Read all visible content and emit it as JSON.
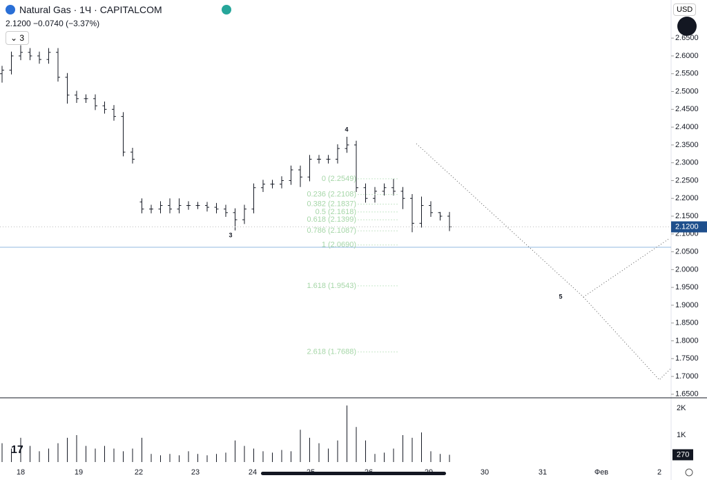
{
  "header": {
    "title": "Natural Gas · 1Ч · CAPITALCOM",
    "price": "2.1200",
    "change": "−0.0740 (−3.37%)",
    "intervals": "3",
    "currency": "USD",
    "current_price": "2.1200"
  },
  "chart_data": {
    "type": "ohlc",
    "color": "#131722",
    "open": [
      2.55,
      2.56,
      2.6,
      2.61,
      2.6,
      2.59,
      2.61,
      2.54,
      2.49,
      2.48,
      2.48,
      2.46,
      2.45,
      2.43,
      2.33,
      2.19,
      2.17,
      2.17,
      2.18,
      2.17,
      2.18,
      2.18,
      2.18,
      2.175,
      2.17,
      2.16,
      2.14,
      2.17,
      2.23,
      2.24,
      2.24,
      2.25,
      2.28,
      2.26,
      2.31,
      2.31,
      2.31,
      2.34,
      2.35,
      2.23,
      2.2,
      2.22,
      2.23,
      2.22,
      2.2,
      2.13,
      2.18,
      2.16,
      2.15
    ],
    "high": [
      2.572,
      2.612,
      2.63,
      2.622,
      2.612,
      2.622,
      2.622,
      2.552,
      2.502,
      2.492,
      2.492,
      2.472,
      2.462,
      2.442,
      2.342,
      2.2,
      2.182,
      2.192,
      2.2,
      2.2,
      2.192,
      2.19,
      2.19,
      2.187,
      2.182,
      2.172,
      2.182,
      2.242,
      2.252,
      2.252,
      2.262,
      2.292,
      2.292,
      2.322,
      2.322,
      2.322,
      2.352,
      2.373,
      2.362,
      2.242,
      2.232,
      2.242,
      2.255,
      2.232,
      2.212,
      2.205,
      2.192,
      2.162,
      2.162
    ],
    "low": [
      2.525,
      2.548,
      2.588,
      2.588,
      2.578,
      2.578,
      2.528,
      2.466,
      2.468,
      2.468,
      2.448,
      2.438,
      2.418,
      2.318,
      2.298,
      2.158,
      2.158,
      2.158,
      2.158,
      2.158,
      2.168,
      2.17,
      2.163,
      2.158,
      2.148,
      2.11,
      2.128,
      2.158,
      2.218,
      2.228,
      2.228,
      2.238,
      2.232,
      2.248,
      2.298,
      2.298,
      2.298,
      2.328,
      2.218,
      2.188,
      2.188,
      2.208,
      2.208,
      2.17,
      2.105,
      2.118,
      2.148,
      2.138,
      2.108
    ],
    "close": [
      2.56,
      2.6,
      2.61,
      2.6,
      2.59,
      2.61,
      2.54,
      2.49,
      2.48,
      2.48,
      2.46,
      2.45,
      2.43,
      2.33,
      2.31,
      2.17,
      2.17,
      2.18,
      2.17,
      2.18,
      2.18,
      2.18,
      2.175,
      2.17,
      2.16,
      2.14,
      2.17,
      2.23,
      2.24,
      2.24,
      2.25,
      2.28,
      2.26,
      2.31,
      2.31,
      2.31,
      2.34,
      2.35,
      2.23,
      2.2,
      2.22,
      2.23,
      2.22,
      2.2,
      2.13,
      2.18,
      2.16,
      2.15,
      2.12
    ],
    "ylim": [
      1.64,
      2.757
    ],
    "yticks": [
      {
        "value": 1.65,
        "label": "1.6500"
      },
      {
        "value": 1.7,
        "label": "1.7000"
      },
      {
        "value": 1.75,
        "label": "1.7500"
      },
      {
        "value": 1.8,
        "label": "1.8000"
      },
      {
        "value": 1.85,
        "label": "1.8500"
      },
      {
        "value": 1.9,
        "label": "1.9000"
      },
      {
        "value": 1.95,
        "label": "1.9500"
      },
      {
        "value": 2.0,
        "label": "2.0000"
      },
      {
        "value": 2.05,
        "label": "2.0500"
      },
      {
        "value": 2.1,
        "label": "2.1000"
      },
      {
        "value": 2.15,
        "label": "2.1500"
      },
      {
        "value": 2.2,
        "label": "2.2000"
      },
      {
        "value": 2.25,
        "label": "2.2500"
      },
      {
        "value": 2.3,
        "label": "2.3000"
      },
      {
        "value": 2.35,
        "label": "2.3500"
      },
      {
        "value": 2.4,
        "label": "2.4000"
      },
      {
        "value": 2.45,
        "label": "2.4500"
      },
      {
        "value": 2.5,
        "label": "2.5000"
      },
      {
        "value": 2.55,
        "label": "2.5500"
      },
      {
        "value": 2.6,
        "label": "2.6000"
      },
      {
        "value": 2.65,
        "label": "2.6500"
      }
    ],
    "last_price": 2.12,
    "fib_levels": [
      {
        "value": 2.2549,
        "label": "0 (2.2549)"
      },
      {
        "value": 2.2108,
        "label": "0.236 (2.2108)"
      },
      {
        "value": 2.1837,
        "label": "0.382 (2.1837)"
      },
      {
        "value": 2.1618,
        "label": "0.5 (2.1618)"
      },
      {
        "value": 2.1399,
        "label": "0.618 (2.1399)"
      },
      {
        "value": 2.1087,
        "label": "0.786 (2.1087)"
      },
      {
        "value": 2.069,
        "label": "1 (2.0690)"
      },
      {
        "value": 1.9543,
        "label": "1.618 (1.9543)"
      },
      {
        "value": 1.7688,
        "label": "2.618 (1.7688)"
      }
    ],
    "annotations": [
      "3",
      "4",
      "5"
    ],
    "xaxis_labels": [
      "18",
      "19",
      "22",
      "23",
      "24",
      "25",
      "26",
      "29",
      "30",
      "31",
      "Фев",
      "2"
    ],
    "volume": {
      "values": [
        700,
        500,
        900,
        600,
        400,
        500,
        700,
        900,
        1000,
        600,
        500,
        600,
        500,
        400,
        500,
        900,
        300,
        250,
        300,
        250,
        400,
        300,
        250,
        300,
        350,
        800,
        600,
        500,
        400,
        350,
        450,
        400,
        1200,
        900,
        700,
        500,
        800,
        2100,
        1300,
        800,
        300,
        350,
        500,
        1000,
        900,
        1100,
        400,
        300,
        270
      ],
      "ylim": [
        0,
        2282
      ],
      "yticks": [
        {
          "value": 1000,
          "label": "1K"
        },
        {
          "value": 2000,
          "label": "2K"
        }
      ]
    }
  }
}
